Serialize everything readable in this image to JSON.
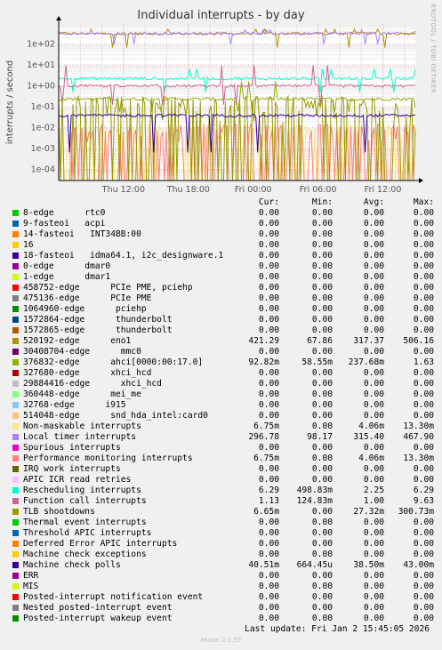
{
  "chart_data": {
    "type": "line",
    "title": "Individual interrupts - by day",
    "ylabel": "interrupts / second",
    "y_scale": "log",
    "ylim": [
      3e-05,
      900
    ],
    "y_ticks": [
      "1e-04",
      "1e-03",
      "1e-02",
      "1e-01",
      "1e+00",
      "1e+01",
      "1e+02"
    ],
    "x_ticks": [
      "Thu 12:00",
      "Thu 18:00",
      "Fri 00:00",
      "Fri 06:00",
      "Fri 12:00"
    ],
    "grid": true,
    "background": "#ffffff",
    "columns": [
      "Cur:",
      "Min:",
      "Avg:",
      "Max:"
    ],
    "series": [
      {
        "name": "8-edge      rtc0",
        "color": "#00cc00",
        "cur": "0.00",
        "min": "0.00",
        "avg": "0.00",
        "max": "0.00"
      },
      {
        "name": "9-fasteoi   acpi",
        "color": "#0066b3",
        "cur": "0.00",
        "min": "0.00",
        "avg": "0.00",
        "max": "0.00"
      },
      {
        "name": "14-fasteoi   INT34BB:00",
        "color": "#ff8000",
        "cur": "0.00",
        "min": "0.00",
        "avg": "0.00",
        "max": "0.00"
      },
      {
        "name": "16",
        "color": "#ffcc00",
        "cur": "0.00",
        "min": "0.00",
        "avg": "0.00",
        "max": "0.00"
      },
      {
        "name": "18-fasteoi   idma64.1, i2c_designware.1",
        "color": "#330099",
        "cur": "0.00",
        "min": "0.00",
        "avg": "0.00",
        "max": "0.00"
      },
      {
        "name": "0-edge      dmar0",
        "color": "#990099",
        "cur": "0.00",
        "min": "0.00",
        "avg": "0.00",
        "max": "0.00"
      },
      {
        "name": "1-edge      dmar1",
        "color": "#ccff00",
        "cur": "0.00",
        "min": "0.00",
        "avg": "0.00",
        "max": "0.00"
      },
      {
        "name": "458752-edge      PCIe PME, pciehp",
        "color": "#ff0000",
        "cur": "0.00",
        "min": "0.00",
        "avg": "0.00",
        "max": "0.00"
      },
      {
        "name": "475136-edge      PCIe PME",
        "color": "#808080",
        "cur": "0.00",
        "min": "0.00",
        "avg": "0.00",
        "max": "0.00"
      },
      {
        "name": "1064960-edge      pciehp",
        "color": "#008f00",
        "cur": "0.00",
        "min": "0.00",
        "avg": "0.00",
        "max": "0.00"
      },
      {
        "name": "1572864-edge      thunderbolt",
        "color": "#00487d",
        "cur": "0.00",
        "min": "0.00",
        "avg": "0.00",
        "max": "0.00"
      },
      {
        "name": "1572865-edge      thunderbolt",
        "color": "#b35a00",
        "cur": "0.00",
        "min": "0.00",
        "avg": "0.00",
        "max": "0.00"
      },
      {
        "name": "520192-edge      eno1",
        "color": "#b38f00",
        "cur": "421.29",
        "min": "67.86",
        "avg": "317.37",
        "max": "506.16"
      },
      {
        "name": "30408704-edge      mmc0",
        "color": "#6b006b",
        "cur": "0.00",
        "min": "0.00",
        "avg": "0.00",
        "max": "0.00"
      },
      {
        "name": "376832-edge      ahci[0000:00:17.0]",
        "color": "#8fb300",
        "cur": "92.82m",
        "min": "58.55m",
        "avg": "237.68m",
        "max": "1.63"
      },
      {
        "name": "327680-edge      xhci_hcd",
        "color": "#b30000",
        "cur": "0.00",
        "min": "0.00",
        "avg": "0.00",
        "max": "0.00"
      },
      {
        "name": "29884416-edge      xhci_hcd",
        "color": "#bebebe",
        "cur": "0.00",
        "min": "0.00",
        "avg": "0.00",
        "max": "0.00"
      },
      {
        "name": "360448-edge      mei_me",
        "color": "#80ff80",
        "cur": "0.00",
        "min": "0.00",
        "avg": "0.00",
        "max": "0.00"
      },
      {
        "name": "32768-edge      i915",
        "color": "#80c9ff",
        "cur": "0.00",
        "min": "0.00",
        "avg": "0.00",
        "max": "0.00"
      },
      {
        "name": "514048-edge      snd_hda_intel:card0",
        "color": "#ffc080",
        "cur": "0.00",
        "min": "0.00",
        "avg": "0.00",
        "max": "0.00"
      },
      {
        "name": "Non-maskable interrupts",
        "color": "#ffe680",
        "cur": "6.75m",
        "min": "0.00",
        "avg": "4.06m",
        "max": "13.30m"
      },
      {
        "name": "Local timer interrupts",
        "color": "#aa80ff",
        "cur": "296.78",
        "min": "98.17",
        "avg": "315.40",
        "max": "467.90"
      },
      {
        "name": "Spurious interrupts",
        "color": "#ee00cc",
        "cur": "0.00",
        "min": "0.00",
        "avg": "0.00",
        "max": "0.00"
      },
      {
        "name": "Performance monitoring interrupts",
        "color": "#ff8080",
        "cur": "6.75m",
        "min": "0.00",
        "avg": "4.06m",
        "max": "13.30m"
      },
      {
        "name": "IRQ work interrupts",
        "color": "#666600",
        "cur": "0.00",
        "min": "0.00",
        "avg": "0.00",
        "max": "0.00"
      },
      {
        "name": "APIC ICR read retries",
        "color": "#ffbfff",
        "cur": "0.00",
        "min": "0.00",
        "avg": "0.00",
        "max": "0.00"
      },
      {
        "name": "Rescheduling interrupts",
        "color": "#00ffcc",
        "cur": "6.29",
        "min": "498.83m",
        "avg": "2.25",
        "max": "6.29"
      },
      {
        "name": "Function call interrupts",
        "color": "#cc6699",
        "cur": "1.13",
        "min": "124.83m",
        "avg": "1.00",
        "max": "9.63"
      },
      {
        "name": "TLB shootdowns",
        "color": "#999900",
        "cur": "6.65m",
        "min": "0.00",
        "avg": "27.32m",
        "max": "300.73m"
      },
      {
        "name": "Thermal event interrupts",
        "color": "#00cc00",
        "cur": "0.00",
        "min": "0.00",
        "avg": "0.00",
        "max": "0.00"
      },
      {
        "name": "Threshold APIC interrupts",
        "color": "#0066b3",
        "cur": "0.00",
        "min": "0.00",
        "avg": "0.00",
        "max": "0.00"
      },
      {
        "name": "Deferred Error APIC interrupts",
        "color": "#ff8000",
        "cur": "0.00",
        "min": "0.00",
        "avg": "0.00",
        "max": "0.00"
      },
      {
        "name": "Machine check exceptions",
        "color": "#ffcc00",
        "cur": "0.00",
        "min": "0.00",
        "avg": "0.00",
        "max": "0.00"
      },
      {
        "name": "Machine check polls",
        "color": "#330099",
        "cur": "40.51m",
        "min": "664.45u",
        "avg": "38.50m",
        "max": "43.00m"
      },
      {
        "name": "ERR",
        "color": "#990099",
        "cur": "0.00",
        "min": "0.00",
        "avg": "0.00",
        "max": "0.00"
      },
      {
        "name": "MIS",
        "color": "#ccff00",
        "cur": "0.00",
        "min": "0.00",
        "avg": "0.00",
        "max": "0.00"
      },
      {
        "name": "Posted-interrupt notification event",
        "color": "#ff0000",
        "cur": "0.00",
        "min": "0.00",
        "avg": "0.00",
        "max": "0.00"
      },
      {
        "name": "Nested posted-interrupt event",
        "color": "#808080",
        "cur": "0.00",
        "min": "0.00",
        "avg": "0.00",
        "max": "0.00"
      },
      {
        "name": "Posted-interrupt wakeup event",
        "color": "#008f00",
        "cur": "0.00",
        "min": "0.00",
        "avg": "0.00",
        "max": "0.00"
      }
    ]
  },
  "side_credit": "RRDTOOL / TOBI OETIKER",
  "last_update": "Last update:  Fri Jan  2 15:45:05 2026",
  "munin_version": "Munin 2.0.57"
}
